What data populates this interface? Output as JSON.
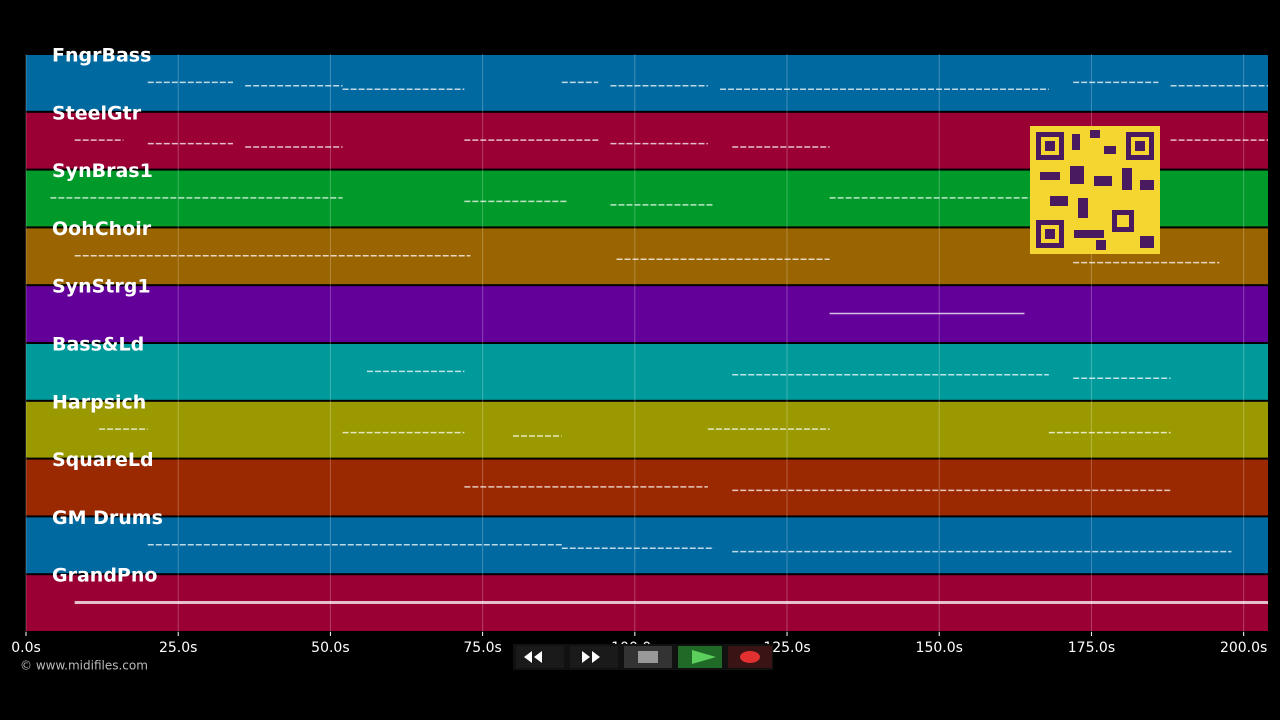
{
  "chart_data": {
    "type": "piano-roll",
    "xlim": [
      0,
      204
    ],
    "xticks": [
      {
        "value": 0,
        "label": "0.0s"
      },
      {
        "value": 25,
        "label": "25.0s"
      },
      {
        "value": 50,
        "label": "50.0s"
      },
      {
        "value": 75,
        "label": "75.0s"
      },
      {
        "value": 100,
        "label": "100.0s"
      },
      {
        "value": 125,
        "label": "125.0s"
      },
      {
        "value": 150,
        "label": "150.0s"
      },
      {
        "value": 175,
        "label": "175.0s"
      },
      {
        "value": 200,
        "label": "200.0s"
      }
    ],
    "grid": true,
    "copyright": "© www.midifiles.com",
    "tracks": [
      {
        "name": "FngrBass",
        "color": "#0069a0",
        "notes": [
          [
            20,
            34
          ],
          [
            36,
            52
          ],
          [
            52,
            72
          ],
          [
            88,
            94
          ],
          [
            96,
            112
          ],
          [
            114,
            168
          ],
          [
            172,
            186
          ],
          [
            188,
            204
          ]
        ]
      },
      {
        "name": "SteelGtr",
        "color": "#9a0034",
        "notes": [
          [
            8,
            16
          ],
          [
            20,
            34
          ],
          [
            36,
            52
          ],
          [
            72,
            94
          ],
          [
            96,
            112
          ],
          [
            116,
            132
          ],
          [
            188,
            204
          ]
        ]
      },
      {
        "name": "SynBras1",
        "color": "#009a2a",
        "notes": [
          [
            4,
            52
          ],
          [
            72,
            89
          ],
          [
            96,
            113
          ],
          [
            132,
            165
          ]
        ]
      },
      {
        "name": "OohChoir",
        "color": "#9a6400",
        "notes": [
          [
            8,
            73
          ],
          [
            97,
            132
          ],
          [
            172,
            196
          ]
        ]
      },
      {
        "name": "SynStrg1",
        "color": "#64009a",
        "notes": [
          [
            132,
            164
          ]
        ]
      },
      {
        "name": "Bass&Ld",
        "color": "#009a9a",
        "notes": [
          [
            56,
            72
          ],
          [
            116,
            168
          ],
          [
            172,
            188
          ]
        ]
      },
      {
        "name": "Harpsich",
        "color": "#9a9a00",
        "notes": [
          [
            12,
            20
          ],
          [
            52,
            72
          ],
          [
            80,
            88
          ],
          [
            112,
            132
          ],
          [
            168,
            188
          ]
        ]
      },
      {
        "name": "SquareLd",
        "color": "#9a2800",
        "notes": [
          [
            72,
            112
          ],
          [
            116,
            188
          ]
        ]
      },
      {
        "name": "GM Drums",
        "color": "#0069a0",
        "notes": [
          [
            20,
            88
          ],
          [
            88,
            113
          ],
          [
            116,
            198
          ]
        ]
      },
      {
        "name": "GrandPno",
        "color": "#9a0034",
        "notes": [
          [
            8,
            204
          ]
        ]
      }
    ]
  }
}
